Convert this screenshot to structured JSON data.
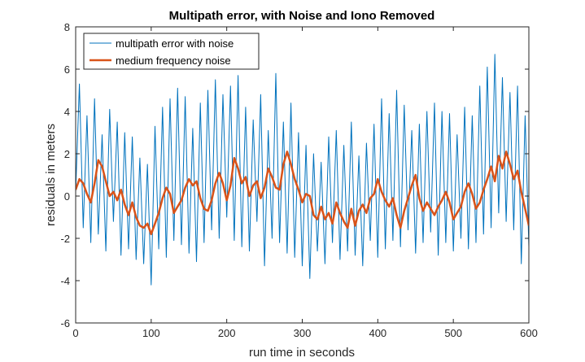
{
  "chart_data": {
    "type": "line",
    "title": "Multipath error, with Noise and Iono Removed",
    "xlabel": "run time in seconds",
    "ylabel": "residuals in meters",
    "xlim": [
      0,
      600
    ],
    "ylim": [
      -6,
      8
    ],
    "xticks": [
      "0",
      "100",
      "200",
      "300",
      "400",
      "500",
      "600"
    ],
    "yticks": [
      "-6",
      "-4",
      "-2",
      "0",
      "2",
      "4",
      "6",
      "8"
    ],
    "grid": false,
    "legend": "top-left",
    "series": [
      {
        "name": "multipath error with noise",
        "color": "#0072BD",
        "x": [
          0,
          5,
          10,
          15,
          20,
          25,
          30,
          35,
          40,
          45,
          50,
          55,
          60,
          65,
          70,
          75,
          80,
          85,
          90,
          95,
          100,
          105,
          110,
          115,
          120,
          125,
          130,
          135,
          140,
          145,
          150,
          155,
          160,
          165,
          170,
          175,
          180,
          185,
          190,
          195,
          200,
          205,
          210,
          215,
          220,
          225,
          230,
          235,
          240,
          245,
          250,
          255,
          260,
          265,
          270,
          275,
          280,
          285,
          290,
          295,
          300,
          305,
          310,
          315,
          320,
          325,
          330,
          335,
          340,
          345,
          350,
          355,
          360,
          365,
          370,
          375,
          380,
          385,
          390,
          395,
          400,
          405,
          410,
          415,
          420,
          425,
          430,
          435,
          440,
          445,
          450,
          455,
          460,
          465,
          470,
          475,
          480,
          485,
          490,
          495,
          500,
          505,
          510,
          515,
          520,
          525,
          530,
          535,
          540,
          545,
          550,
          555,
          560,
          565,
          570,
          575,
          580,
          585,
          590,
          595,
          600
        ],
        "y": [
          0.2,
          5.3,
          -1.5,
          3.8,
          -2.2,
          4.6,
          -1.8,
          2.9,
          -2.6,
          4.1,
          -1.2,
          3.5,
          -2.8,
          3.0,
          -2.5,
          2.8,
          -3.0,
          1.8,
          -3.2,
          1.5,
          -4.2,
          3.3,
          -2.5,
          4.2,
          -2.9,
          4.6,
          -2.1,
          5.1,
          -2.3,
          4.7,
          -2.7,
          3.2,
          -3.1,
          4.4,
          -2.2,
          5.0,
          -1.6,
          5.5,
          -2.0,
          4.8,
          -1.0,
          5.2,
          -2.1,
          5.7,
          -2.4,
          4.2,
          -2.6,
          3.6,
          -1.2,
          4.8,
          -3.3,
          3.1,
          -2.0,
          5.8,
          -2.2,
          3.5,
          -2.7,
          4.4,
          -2.9,
          3.0,
          -3.3,
          2.4,
          -3.9,
          2.0,
          -2.6,
          1.6,
          -3.2,
          2.8,
          -2.2,
          3.1,
          -3.0,
          2.4,
          -2.6,
          3.5,
          -2.8,
          1.9,
          -3.3,
          2.5,
          -2.1,
          3.4,
          -2.9,
          4.6,
          -2.5,
          3.9,
          -2.1,
          5.0,
          -2.4,
          4.3,
          -1.6,
          3.1,
          -2.7,
          3.4,
          -2.2,
          4.0,
          -1.7,
          4.4,
          -2.8,
          4.0,
          -2.2,
          3.9,
          -2.6,
          2.9,
          -2.0,
          4.2,
          -2.5,
          3.8,
          -2.2,
          5.2,
          -1.8,
          6.1,
          -1.5,
          6.7,
          -0.8,
          5.6,
          -1.2,
          4.9,
          -1.6,
          5.2,
          -3.2,
          3.8,
          -2.4
        ]
      },
      {
        "name": "medium frequency noise",
        "color": "#D95319",
        "x": [
          0,
          5,
          10,
          15,
          20,
          25,
          30,
          35,
          40,
          45,
          50,
          55,
          60,
          65,
          70,
          75,
          80,
          85,
          90,
          95,
          100,
          105,
          110,
          115,
          120,
          125,
          130,
          135,
          140,
          145,
          150,
          155,
          160,
          165,
          170,
          175,
          180,
          185,
          190,
          195,
          200,
          205,
          210,
          215,
          220,
          225,
          230,
          235,
          240,
          245,
          250,
          255,
          260,
          265,
          270,
          275,
          280,
          285,
          290,
          295,
          300,
          305,
          310,
          315,
          320,
          325,
          330,
          335,
          340,
          345,
          350,
          355,
          360,
          365,
          370,
          375,
          380,
          385,
          390,
          395,
          400,
          405,
          410,
          415,
          420,
          425,
          430,
          435,
          440,
          445,
          450,
          455,
          460,
          465,
          470,
          475,
          480,
          485,
          490,
          495,
          500,
          505,
          510,
          515,
          520,
          525,
          530,
          535,
          540,
          545,
          550,
          555,
          560,
          565,
          570,
          575,
          580,
          585,
          590,
          595,
          600
        ],
        "y": [
          0.3,
          0.8,
          0.6,
          0.1,
          -0.3,
          0.6,
          1.7,
          1.4,
          0.7,
          0.0,
          0.2,
          -0.2,
          0.3,
          -0.4,
          -0.9,
          -0.3,
          -1.0,
          -1.4,
          -1.5,
          -1.3,
          -1.8,
          -1.3,
          -0.8,
          -0.1,
          0.4,
          0.1,
          -0.8,
          -0.5,
          -0.2,
          0.4,
          0.8,
          0.5,
          0.7,
          -0.1,
          -0.6,
          -0.7,
          -0.2,
          0.6,
          1.1,
          0.6,
          -0.2,
          0.5,
          1.8,
          1.3,
          0.6,
          0.9,
          0.0,
          0.5,
          0.7,
          -0.1,
          0.4,
          1.3,
          0.9,
          0.4,
          0.3,
          1.5,
          2.1,
          1.5,
          0.8,
          0.3,
          -0.3,
          0.1,
          0.0,
          -0.9,
          -1.1,
          -0.5,
          -1.1,
          -0.8,
          -1.3,
          -0.3,
          -0.8,
          -1.2,
          -1.5,
          -0.6,
          -1.4,
          -0.7,
          -0.4,
          -0.8,
          -0.1,
          0.1,
          0.8,
          0.2,
          -0.2,
          -0.5,
          -0.1,
          -0.9,
          -1.5,
          -0.7,
          -0.1,
          0.5,
          1.0,
          -0.1,
          -0.7,
          -0.3,
          -0.6,
          -0.9,
          -0.5,
          -0.2,
          0.2,
          -0.3,
          -1.1,
          -0.8,
          -0.5,
          0.2,
          0.6,
          0.1,
          -0.6,
          -0.3,
          0.3,
          0.8,
          1.4,
          0.7,
          1.9,
          1.3,
          2.1,
          1.5,
          0.8,
          1.2,
          0.2,
          -0.6,
          -1.4
        ]
      }
    ]
  }
}
